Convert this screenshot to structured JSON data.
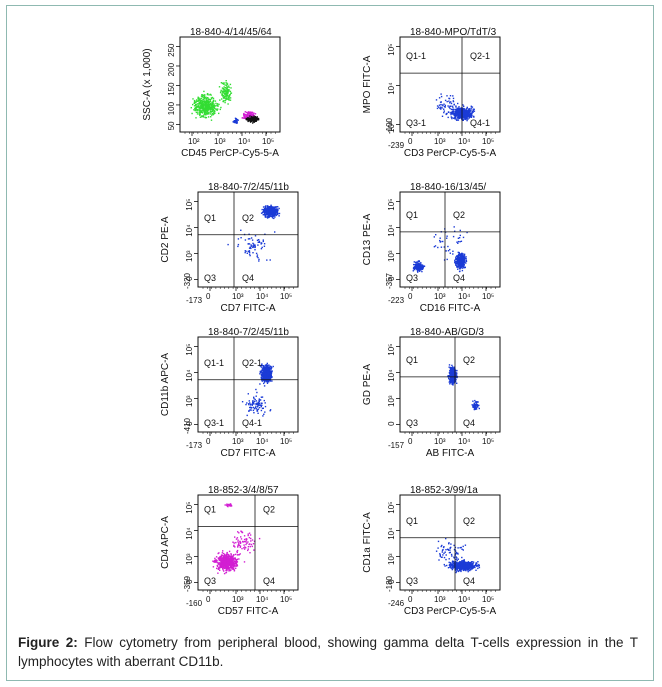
{
  "figure": {
    "label": "Figure 2:",
    "caption": "Flow cytometry from peripheral blood, showing gamma delta T-cells expression in the T lymphocytes with aberrant CD11b."
  },
  "colors": {
    "blue": "#1b3bd6",
    "green": "#33dd33",
    "magenta": "#d21ed2",
    "black": "#111111",
    "border": "#8fb9b1"
  },
  "panels": [
    {
      "title": "18-840-4/14/45/64",
      "xlabel": "CD45 PerCP-Cy5-5-A",
      "ylabel": "SSC-A (x 1,000)",
      "yticks": [
        "50",
        "100",
        "150",
        "200",
        "250"
      ],
      "xticks": [
        "10²",
        "10³",
        "10⁴",
        "10⁵"
      ],
      "xmin": "",
      "ymin": "",
      "quadrants": []
    },
    {
      "title": "18-840-MPO/TdT/3",
      "xlabel": "CD3 PerCP-Cy5-5-A",
      "ylabel": "MPO FITC-A",
      "yticks": [
        "10³",
        "10⁴",
        "10⁵"
      ],
      "xticks": [
        "0",
        "10³",
        "10⁴",
        "10⁵"
      ],
      "xmin": "-239",
      "ymin": "-100",
      "quadrants": [
        "Q1-1",
        "Q2-1",
        "Q3-1",
        "Q4-1"
      ]
    },
    {
      "title": "18-840-7/2/45/11b",
      "xlabel": "CD7 FITC-A",
      "ylabel": "CD2 PE-A",
      "yticks": [
        "0",
        "10³",
        "10⁴",
        "10⁵"
      ],
      "xticks": [
        "0",
        "10³",
        "10⁴",
        "10⁵"
      ],
      "xmin": "-173",
      "ymin": "-320",
      "quadrants": [
        "Q1",
        "Q2",
        "Q3",
        "Q4"
      ]
    },
    {
      "title": "18-840-16/13/45/",
      "xlabel": "CD16 FITC-A",
      "ylabel": "CD13 PE-A",
      "yticks": [
        "0",
        "10³",
        "10⁴",
        "10⁵"
      ],
      "xticks": [
        "0",
        "10³",
        "10⁴",
        "10⁵"
      ],
      "xmin": "-223",
      "ymin": "-357",
      "quadrants": [
        "Q1",
        "Q2",
        "Q3",
        "Q4"
      ]
    },
    {
      "title": "18-840-7/2/45/11b",
      "xlabel": "CD7 FITC-A",
      "ylabel": "CD11b APC-A",
      "yticks": [
        "0",
        "10³",
        "10⁴",
        "10⁵"
      ],
      "xticks": [
        "0",
        "10³",
        "10⁴",
        "10⁵"
      ],
      "xmin": "-173",
      "ymin": "-410",
      "quadrants": [
        "Q1-1",
        "Q2-1",
        "Q3-1",
        "Q4-1"
      ]
    },
    {
      "title": "18-840-AB/GD/3",
      "xlabel": "AB FITC-A",
      "ylabel": "GD PE-A",
      "yticks": [
        "0",
        "10³",
        "10⁴",
        "10⁵"
      ],
      "xticks": [
        "0",
        "10³",
        "10⁴",
        "10⁵"
      ],
      "xmin": "-157",
      "ymin": "",
      "quadrants": [
        "Q1",
        "Q2",
        "Q3",
        "Q4"
      ]
    },
    {
      "title": "18-852-3/4/8/57",
      "xlabel": "CD57 FITC-A",
      "ylabel": "CD4 APC-A",
      "yticks": [
        "0",
        "10³",
        "10⁴",
        "10⁵"
      ],
      "xticks": [
        "0",
        "10³",
        "10⁴",
        "10⁵"
      ],
      "xmin": "-160",
      "ymin": "-359",
      "quadrants": [
        "Q1",
        "Q2",
        "Q3",
        "Q4"
      ]
    },
    {
      "title": "18-852-3/99/1a",
      "xlabel": "CD3 PerCP-Cy5-5-A",
      "ylabel": "CD1a FITC-A",
      "yticks": [
        "0",
        "10³",
        "10⁴",
        "10⁵"
      ],
      "xticks": [
        "0",
        "10³",
        "10⁴",
        "10⁵"
      ],
      "xmin": "-246",
      "ymin": "-180",
      "quadrants": [
        "Q1",
        "Q2",
        "Q3",
        "Q4"
      ]
    }
  ]
}
